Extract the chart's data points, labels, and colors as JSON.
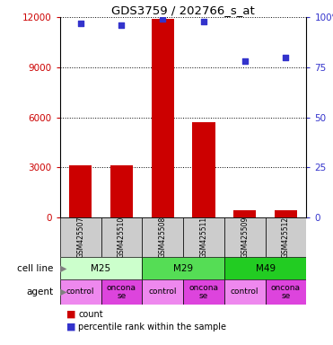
{
  "title": "GDS3759 / 202766_s_at",
  "samples": [
    "GSM425507",
    "GSM425510",
    "GSM425508",
    "GSM425511",
    "GSM425509",
    "GSM425512"
  ],
  "counts": [
    3100,
    3100,
    11900,
    5700,
    400,
    400
  ],
  "percentiles": [
    97,
    96,
    99,
    98,
    78,
    80
  ],
  "ylim_left": [
    0,
    12000
  ],
  "ylim_right": [
    0,
    100
  ],
  "yticks_left": [
    0,
    3000,
    6000,
    9000,
    12000
  ],
  "yticks_right": [
    0,
    25,
    50,
    75,
    100
  ],
  "ytick_labels_right": [
    "0",
    "25",
    "50",
    "75",
    "100%"
  ],
  "bar_color": "#cc0000",
  "dot_color": "#3333cc",
  "cell_lines": [
    {
      "label": "M25",
      "span": [
        0,
        2
      ],
      "color": "#ccffcc"
    },
    {
      "label": "M29",
      "span": [
        2,
        4
      ],
      "color": "#55dd55"
    },
    {
      "label": "M49",
      "span": [
        4,
        6
      ],
      "color": "#22cc22"
    }
  ],
  "agents": [
    {
      "label": "control",
      "span": [
        0,
        1
      ],
      "color": "#ee88ee"
    },
    {
      "label": "oncona\nse",
      "span": [
        1,
        2
      ],
      "color": "#dd44dd"
    },
    {
      "label": "control",
      "span": [
        2,
        3
      ],
      "color": "#ee88ee"
    },
    {
      "label": "oncona\nse",
      "span": [
        3,
        4
      ],
      "color": "#dd44dd"
    },
    {
      "label": "control",
      "span": [
        4,
        5
      ],
      "color": "#ee88ee"
    },
    {
      "label": "oncona\nse",
      "span": [
        5,
        6
      ],
      "color": "#dd44dd"
    }
  ],
  "cell_line_row_label": "cell line",
  "agent_row_label": "agent",
  "sample_bg_color": "#cccccc",
  "left_axis_color": "#cc0000",
  "right_axis_color": "#3333cc"
}
